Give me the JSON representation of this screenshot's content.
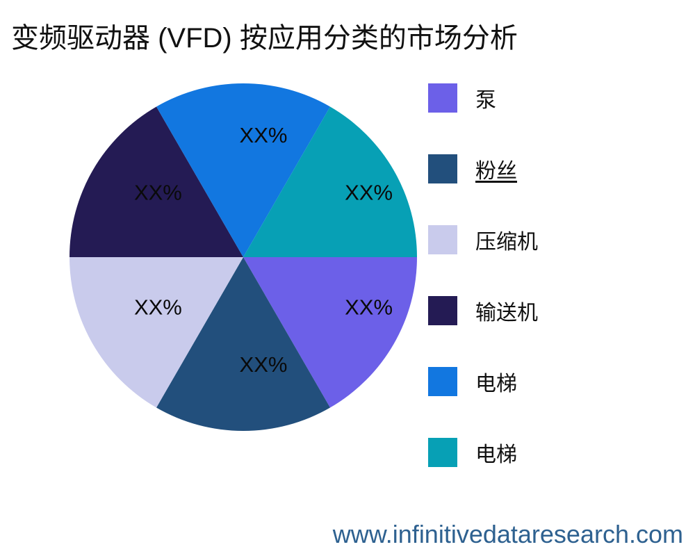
{
  "page": {
    "background_color": "#ffffff",
    "title": "变频驱动器 (VFD) 按应用分类的市场分析"
  },
  "footer": {
    "url_text": "www.infinitivedataresearch.com",
    "color": "#2e6190"
  },
  "chart_data": {
    "type": "pie",
    "title": "变频驱动器 (VFD) 按应用分类的市场分析",
    "direction": "clockwise",
    "start_angle_deg": 0,
    "legend_position": "right",
    "value_placeholder": "XX%",
    "slices": [
      {
        "label": "泵",
        "value": 16.67,
        "value_label": "XX%",
        "color": "#6c60e8",
        "underline": false
      },
      {
        "label": "粉丝",
        "value": 16.67,
        "value_label": "XX%",
        "color": "#224f7c",
        "underline": true
      },
      {
        "label": "压缩机",
        "value": 16.67,
        "value_label": "XX%",
        "color": "#c9cbec",
        "underline": false
      },
      {
        "label": "输送机",
        "value": 16.67,
        "value_label": "XX%",
        "color": "#241b54",
        "underline": false
      },
      {
        "label": "电梯",
        "value": 16.67,
        "value_label": "XX%",
        "color": "#1277e0",
        "underline": false
      },
      {
        "label": "电梯",
        "value": 16.67,
        "value_label": "XX%",
        "color": "#07a0b5",
        "underline": false
      }
    ]
  }
}
